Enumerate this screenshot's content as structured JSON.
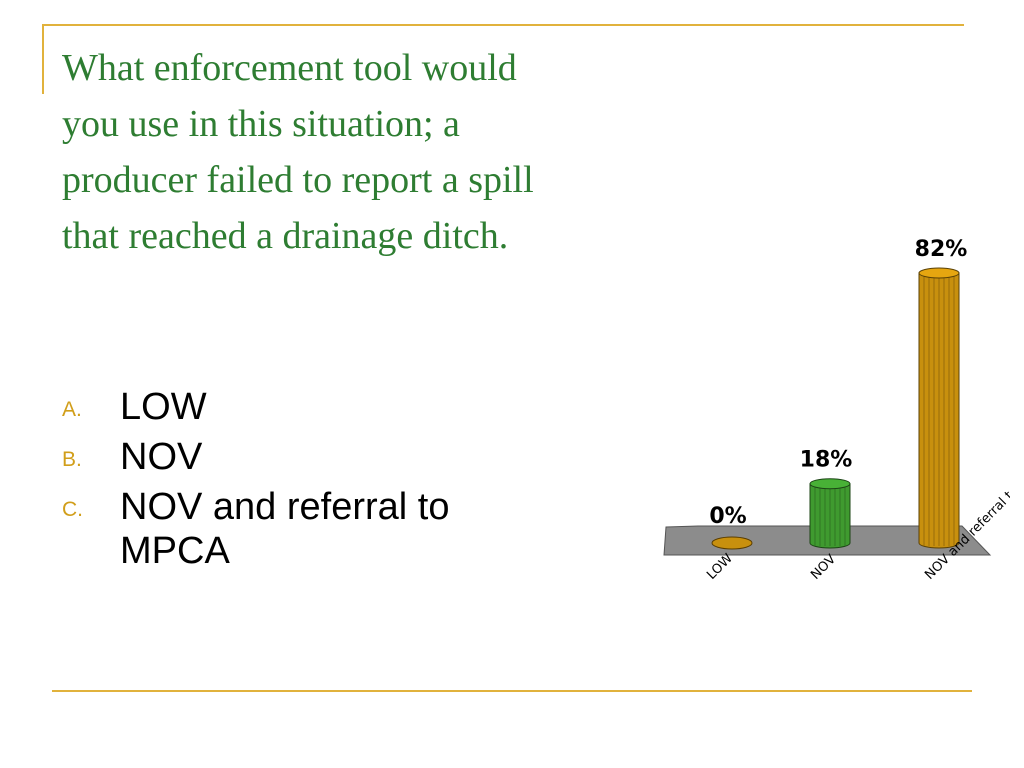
{
  "slide": {
    "title": "What enforcement tool would you use in this situation; a producer failed to report a spill that reached a drainage ditch.",
    "choices": [
      {
        "letter": "A.",
        "text": "LOW"
      },
      {
        "letter": "B.",
        "text": "NOV"
      },
      {
        "letter": "C.",
        "text": "NOV and referral to MPCA"
      }
    ],
    "colors": {
      "accent": "#e1b23c",
      "title": "#2e7d32",
      "letter": "#d19e1a"
    }
  },
  "chart_data": {
    "type": "bar",
    "categories": [
      "LOW",
      "NOV",
      "NOV and referral to MPCA"
    ],
    "values": [
      0,
      18,
      82
    ],
    "value_labels": [
      "0%",
      "18%",
      "82%"
    ],
    "ylim": [
      0,
      100
    ],
    "grid": false,
    "bar_colors": [
      "#c8900e",
      "#3f9a2f",
      "#c8900e"
    ],
    "floor_color": "#8c8c8c"
  }
}
